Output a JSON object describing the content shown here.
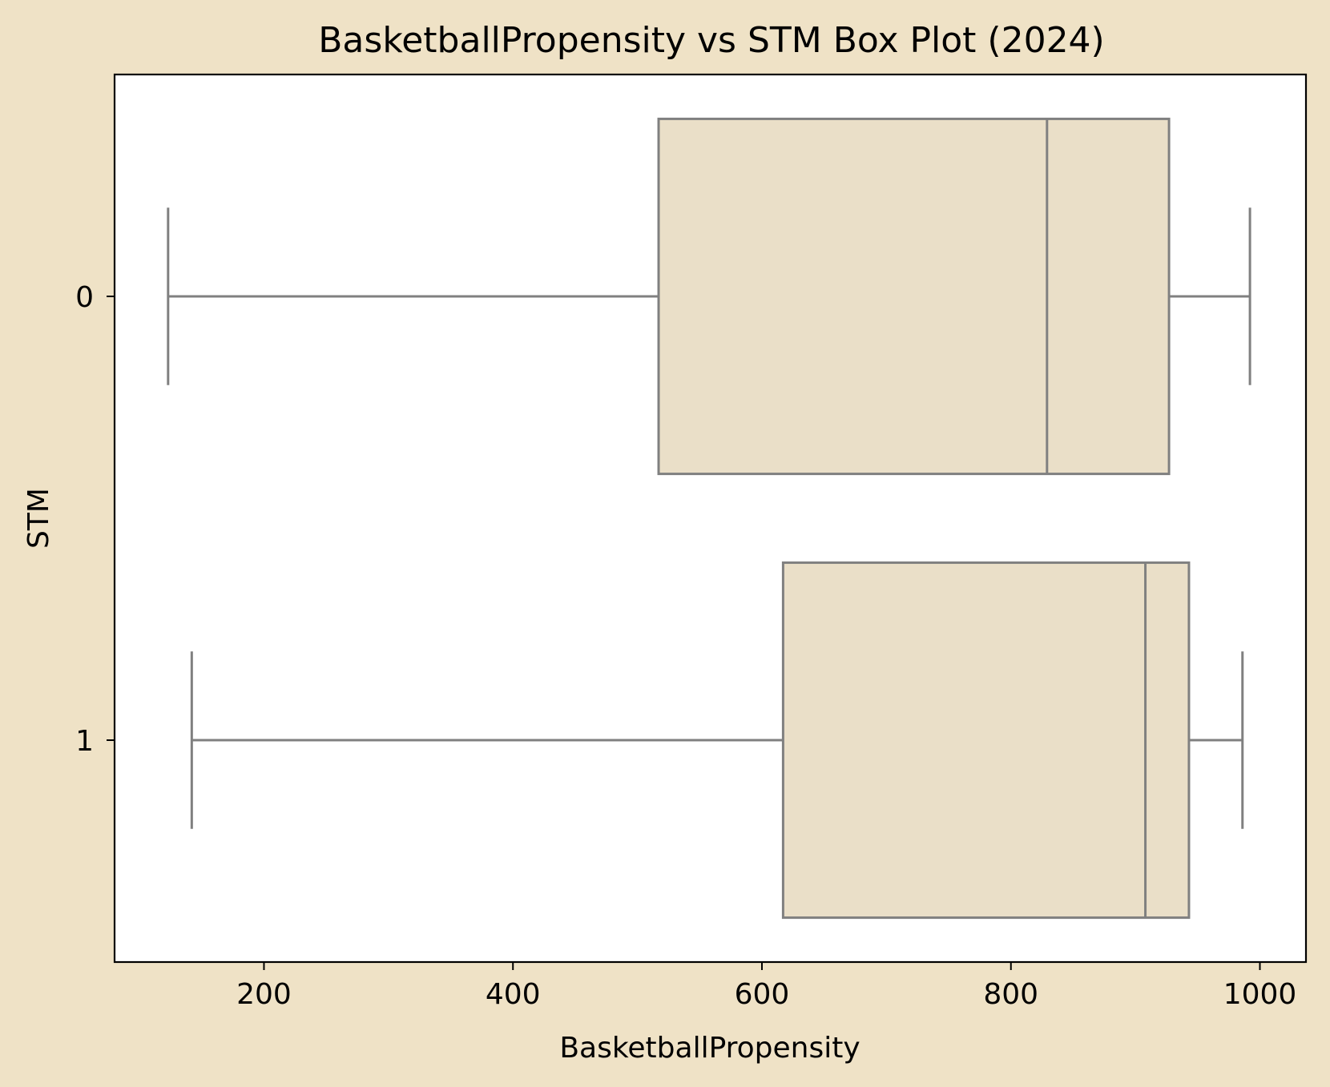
{
  "chart_data": {
    "type": "box",
    "orientation": "horizontal",
    "title": "BasketballPropensity vs STM Box Plot (2024)",
    "xlabel": "BasketballPropensity",
    "ylabel": "STM",
    "xlim": [
      80,
      1037
    ],
    "x_ticks": [
      200,
      400,
      600,
      800,
      1000
    ],
    "categories": [
      "0",
      "1"
    ],
    "boxes": [
      {
        "category": "0",
        "whisker_low": 123,
        "q1": 517,
        "median": 829,
        "q3": 927,
        "whisker_high": 992
      },
      {
        "category": "1",
        "whisker_low": 142,
        "q1": 617,
        "median": 908,
        "q3": 943,
        "whisker_high": 986
      }
    ],
    "grid": false,
    "colors": {
      "figure_background": "#efe2c6",
      "plot_background": "#ffffff",
      "box_fill": "#eadfc8",
      "box_stroke": "#808080",
      "axis": "#000000"
    }
  }
}
